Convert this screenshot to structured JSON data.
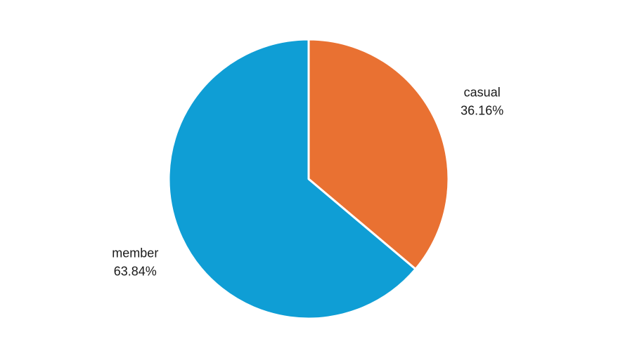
{
  "chart_data": {
    "type": "pie",
    "title": "",
    "categories": [
      "casual",
      "member"
    ],
    "values": [
      36.16,
      63.84
    ],
    "value_labels": [
      "36.16%",
      "63.84%"
    ],
    "colors": [
      "#E97132",
      "#0F9ED5"
    ],
    "start_angle_deg": 0,
    "direction": "clockwise",
    "slice_border_color": "#ffffff",
    "legend": "none",
    "labels_position": "outside"
  }
}
